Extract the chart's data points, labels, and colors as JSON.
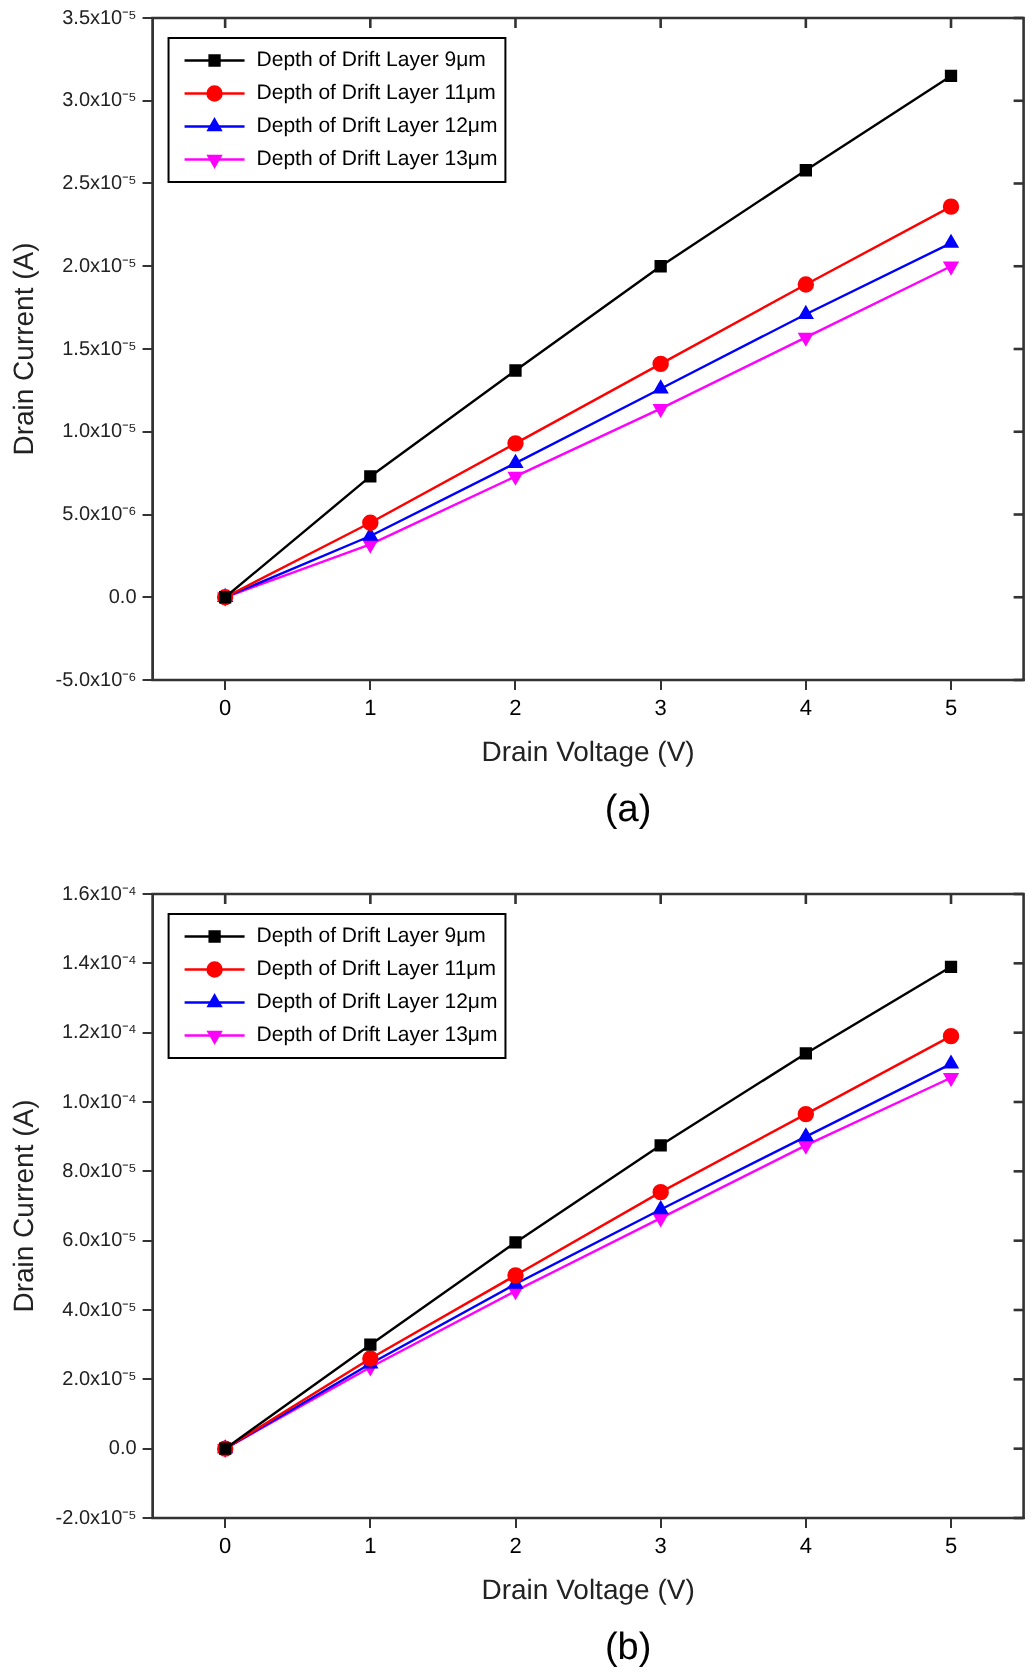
{
  "chart_data": [
    {
      "type": "line",
      "xlabel": "Drain Voltage (V)",
      "ylabel": "Drain Current (A)",
      "annotations": [
        "(a)"
      ],
      "legend": "top left",
      "grid": false,
      "line_style": "solid",
      "x": [
        0,
        1,
        2,
        3,
        4,
        5
      ],
      "xlim": [
        -0.5,
        5.5
      ],
      "xticks": [
        0,
        1,
        2,
        3,
        4,
        5
      ],
      "ylim": [
        -5e-06,
        3.5e-05
      ],
      "yticks": [
        {
          "value": -5e-06,
          "label": "-5.0x10⁻⁶"
        },
        {
          "value": 0,
          "label": "0.0"
        },
        {
          "value": 5e-06,
          "label": "5.0x10⁻⁶"
        },
        {
          "value": 1e-05,
          "label": "1.0x10⁻⁵"
        },
        {
          "value": 1.5e-05,
          "label": "1.5x10⁻⁵"
        },
        {
          "value": 2e-05,
          "label": "2.0x10⁻⁵"
        },
        {
          "value": 2.5e-05,
          "label": "2.5x10⁻⁵"
        },
        {
          "value": 3e-05,
          "label": "3.0x10⁻⁵"
        },
        {
          "value": 3.5e-05,
          "label": "3.5x10⁻⁵"
        }
      ],
      "series": [
        {
          "name": "Depth of Drift Layer 9μm",
          "color": "#000000",
          "marker": "square",
          "values": [
            0,
            7.3e-06,
            1.37e-05,
            2e-05,
            2.58e-05,
            3.15e-05
          ]
        },
        {
          "name": "Depth of Drift Layer 11μm",
          "color": "#ff0000",
          "marker": "circle",
          "values": [
            0,
            4.5e-06,
            9.3e-06,
            1.41e-05,
            1.89e-05,
            2.36e-05
          ]
        },
        {
          "name": "Depth of Drift Layer 12μm",
          "color": "#0000ff",
          "marker": "triangle",
          "values": [
            0,
            3.7e-06,
            8.1e-06,
            1.26e-05,
            1.71e-05,
            2.14e-05
          ]
        },
        {
          "name": "Depth of Drift Layer 13μm",
          "color": "#ff00ff",
          "marker": "triangle-down",
          "values": [
            0,
            3.2e-06,
            7.3e-06,
            1.14e-05,
            1.57e-05,
            2e-05
          ]
        }
      ]
    },
    {
      "type": "line",
      "xlabel": "Drain Voltage (V)",
      "ylabel": "Drain Current (A)",
      "annotations": [
        "(b)"
      ],
      "legend": "top left",
      "grid": false,
      "line_style": "solid",
      "x": [
        0,
        1,
        2,
        3,
        4,
        5
      ],
      "xlim": [
        -0.5,
        5.5
      ],
      "xticks": [
        0,
        1,
        2,
        3,
        4,
        5
      ],
      "ylim": [
        -2e-05,
        0.00016
      ],
      "yticks": [
        {
          "value": -2e-05,
          "label": "-2.0x10⁻⁵"
        },
        {
          "value": 0,
          "label": "0.0"
        },
        {
          "value": 2e-05,
          "label": "2.0x10⁻⁵"
        },
        {
          "value": 4e-05,
          "label": "4.0x10⁻⁵"
        },
        {
          "value": 6e-05,
          "label": "6.0x10⁻⁵"
        },
        {
          "value": 8e-05,
          "label": "8.0x10⁻⁵"
        },
        {
          "value": 0.0001,
          "label": "1.0x10⁻⁴"
        },
        {
          "value": 0.00012,
          "label": "1.2x10⁻⁴"
        },
        {
          "value": 0.00014,
          "label": "1.4x10⁻⁴"
        },
        {
          "value": 0.00016,
          "label": "1.6x10⁻⁴"
        }
      ],
      "series": [
        {
          "name": "Depth of Drift Layer 9μm",
          "color": "#000000",
          "marker": "square",
          "values": [
            0,
            3e-05,
            5.95e-05,
            8.75e-05,
            0.000114,
            0.000139
          ]
        },
        {
          "name": "Depth of Drift Layer 11μm",
          "color": "#ff0000",
          "marker": "circle",
          "values": [
            0,
            2.6e-05,
            5e-05,
            7.4e-05,
            9.65e-05,
            0.000119
          ]
        },
        {
          "name": "Depth of Drift Layer 12μm",
          "color": "#0000ff",
          "marker": "triangle",
          "values": [
            0,
            2.45e-05,
            4.75e-05,
            6.9e-05,
            9e-05,
            0.000111
          ]
        },
        {
          "name": "Depth of Drift Layer 13μm",
          "color": "#ff00ff",
          "marker": "triangle-down",
          "values": [
            0,
            2.35e-05,
            4.55e-05,
            6.65e-05,
            8.75e-05,
            0.000107
          ]
        }
      ]
    }
  ]
}
